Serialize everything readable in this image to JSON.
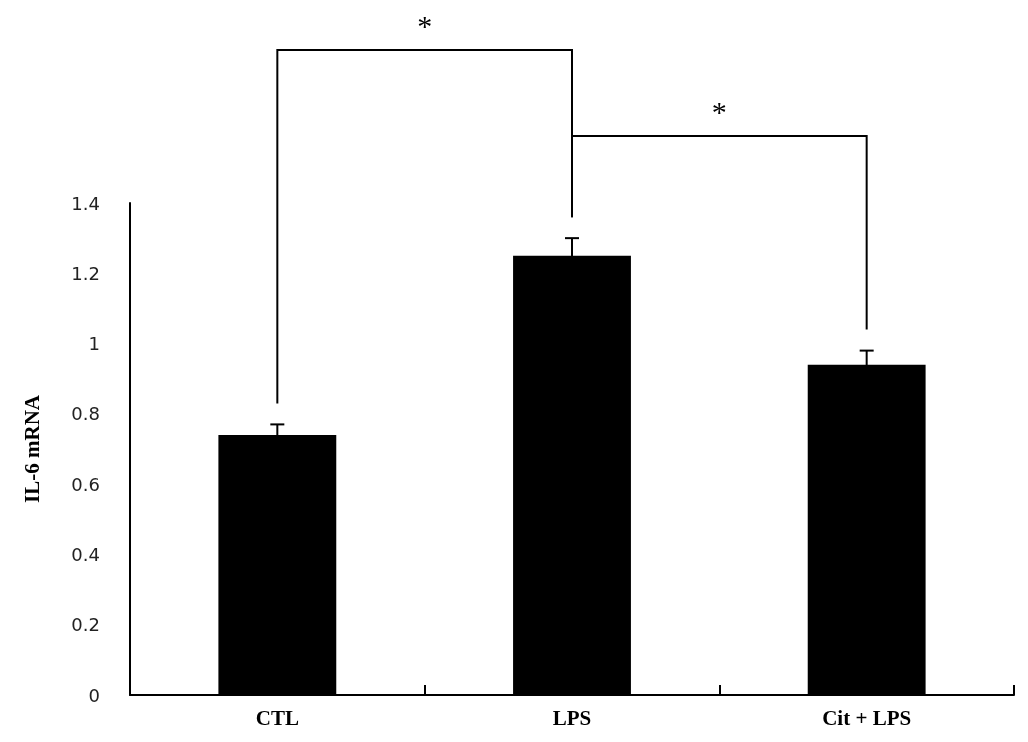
{
  "chart_data": {
    "type": "bar",
    "ylabel": "IL-6 mRNA",
    "categories": [
      "CTL",
      "LPS",
      "Cit + LPS"
    ],
    "values": [
      0.74,
      1.25,
      0.94
    ],
    "errors": [
      0.03,
      0.05,
      0.04
    ],
    "color": "#000000",
    "ylim": [
      0,
      1.4
    ],
    "yticks": [
      0,
      0.2,
      0.4,
      0.6,
      0.8,
      1,
      1.2,
      1.4
    ],
    "grid": false,
    "annotations": [
      "*",
      "*"
    ]
  }
}
